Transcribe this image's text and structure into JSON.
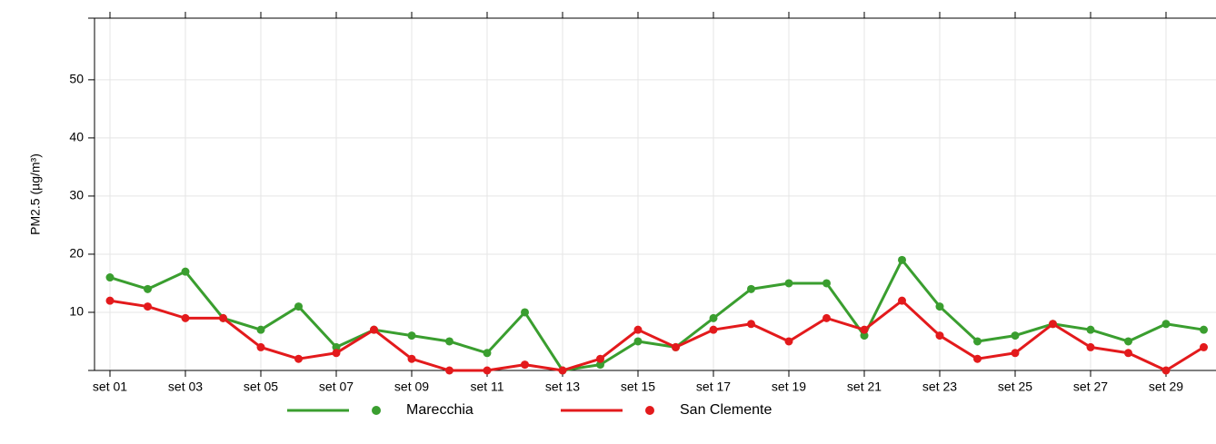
{
  "chart_data": {
    "type": "line",
    "y_label": "PM2.5 (µg/m³)",
    "categories": [
      "set 01",
      null,
      "set 03",
      null,
      "set 05",
      null,
      "set 07",
      null,
      "set 09",
      null,
      "set 11",
      null,
      "set 13",
      null,
      "set 15",
      null,
      "set 17",
      null,
      "set 19",
      null,
      "set 21",
      null,
      "set 23",
      null,
      "set 25",
      null,
      "set 27",
      null,
      "set 29",
      null
    ],
    "series": [
      {
        "name": "Marecchia",
        "color": "#3a9e2f",
        "values": [
          16,
          14,
          17,
          9,
          7,
          11,
          4,
          7,
          6,
          5,
          3,
          10,
          0,
          1,
          5,
          4,
          9,
          14,
          15,
          15,
          6,
          19,
          11,
          5,
          6,
          8,
          7,
          5,
          8,
          7
        ]
      },
      {
        "name": "San Clemente",
        "color": "#e31a1c",
        "values": [
          12,
          11,
          9,
          9,
          4,
          2,
          3,
          7,
          2,
          0,
          0,
          1,
          0,
          2,
          7,
          4,
          7,
          8,
          5,
          9,
          7,
          12,
          6,
          2,
          3,
          8,
          4,
          3,
          0,
          4
        ]
      }
    ],
    "ylim": [
      0,
      60.6
    ],
    "yticks": [
      10,
      20,
      30,
      40,
      50
    ],
    "grid": true,
    "legend": "bottom"
  }
}
